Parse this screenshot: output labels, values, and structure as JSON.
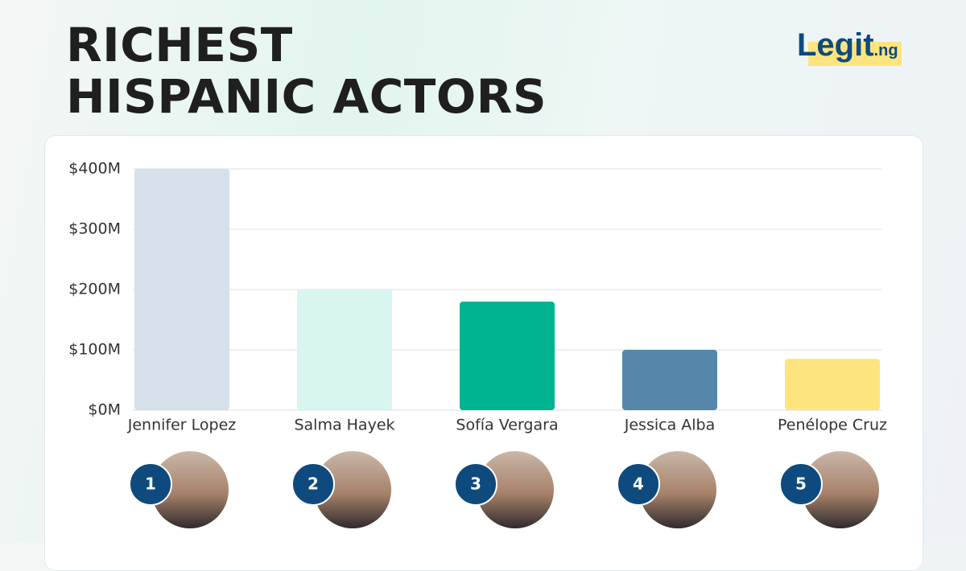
{
  "chart_data": {
    "type": "bar",
    "title": "RICHEST HISPANIC ACTORS",
    "categories": [
      "Jennifer Lopez",
      "Salma Hayek",
      "Sofía Vergara",
      "Jessica Alba",
      "Penélope Cruz"
    ],
    "values": [
      400,
      200,
      180,
      100,
      85
    ],
    "colors": [
      "#d5e0ea",
      "#d8f5ef",
      "#00b391",
      "#5587ab",
      "#fde47f"
    ],
    "ranks": [
      1,
      2,
      3,
      4,
      5
    ],
    "ylim": [
      0,
      400
    ],
    "yticks": [
      {
        "value": 0,
        "label": "$0M"
      },
      {
        "value": 100,
        "label": "$100M"
      },
      {
        "value": 200,
        "label": "$200M"
      },
      {
        "value": 300,
        "label": "$300M"
      },
      {
        "value": 400,
        "label": "$400M"
      }
    ],
    "grid": true
  },
  "logo": {
    "text": "Legit",
    "suffix": ".ng"
  }
}
